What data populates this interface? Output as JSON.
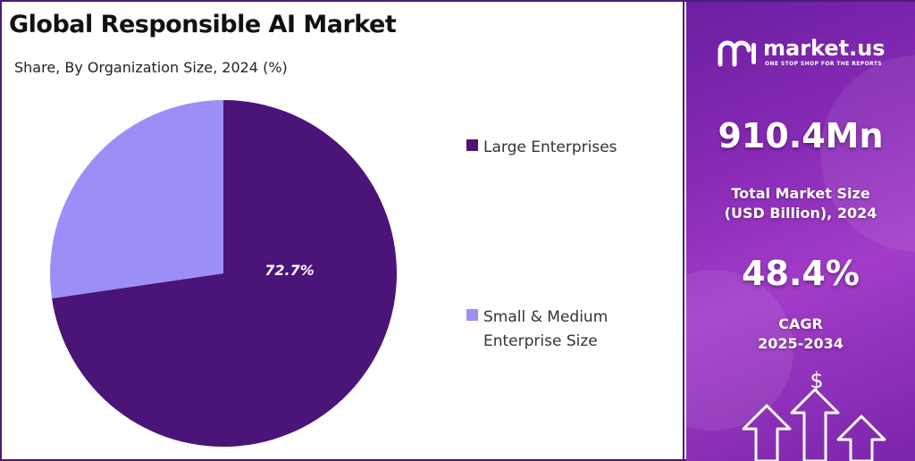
{
  "header": {
    "title": "Global Responsible AI Market",
    "subtitle": "Share, By Organization Size, 2024 (%)"
  },
  "chart_data": {
    "type": "pie",
    "title": "Global Responsible AI Market",
    "subtitle": "Share, By Organization Size, 2024 (%)",
    "slices": [
      {
        "label": "Large Enterprises",
        "value": 72.7,
        "color": "#4b1479",
        "data_label": "72.7%"
      },
      {
        "label": "Small & Medium Enterprise Size",
        "value": 27.3,
        "color": "#9b8ff7",
        "data_label": ""
      }
    ],
    "legend_position": "right"
  },
  "legend": [
    {
      "line1": "Large Enterprises",
      "line2": "",
      "color": "#4b1479"
    },
    {
      "line1": "Small & Medium",
      "line2": "Enterprise Size",
      "color": "#9b8ff7"
    }
  ],
  "sidebar": {
    "logo_name": "market.us",
    "logo_tagline": "ONE STOP SHOP FOR THE REPORTS",
    "market_size_value": "910.4Mn",
    "market_size_label_1": "Total Market Size",
    "market_size_label_2": "(USD Billion), 2024",
    "cagr_value": "48.4%",
    "cagr_label_1": "CAGR",
    "cagr_label_2": "2025-2034",
    "dollar_symbol": "$",
    "icons": [
      "logo-icon",
      "dollar-icon",
      "up-arrow-icon"
    ]
  }
}
